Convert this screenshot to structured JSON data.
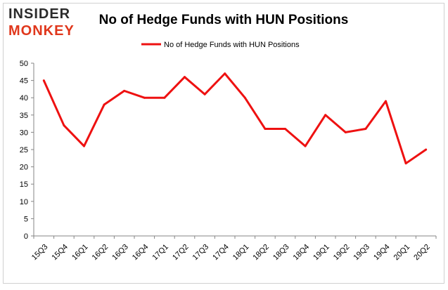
{
  "logo": {
    "line1": "INSIDER",
    "line2": "MONKEY"
  },
  "chart_data": {
    "type": "line",
    "title": "No of Hedge Funds with HUN Positions",
    "xlabel": "",
    "ylabel": "",
    "categories": [
      "15Q3",
      "15Q4",
      "16Q1",
      "16Q2",
      "16Q3",
      "16Q4",
      "17Q1",
      "17Q2",
      "17Q3",
      "17Q4",
      "18Q1",
      "18Q2",
      "18Q3",
      "18Q4",
      "19Q1",
      "19Q2",
      "19Q3",
      "19Q4",
      "20Q1",
      "20Q2"
    ],
    "series": [
      {
        "name": "No of Hedge Funds with HUN  Positions",
        "values": [
          45,
          32,
          26,
          38,
          42,
          40,
          40,
          46,
          41,
          47,
          40,
          31,
          31,
          26,
          35,
          30,
          31,
          39,
          21,
          25
        ]
      }
    ],
    "ylim": [
      0,
      50
    ],
    "yticks": [
      0,
      5,
      10,
      15,
      20,
      25,
      30,
      35,
      40,
      45,
      50
    ],
    "grid": false,
    "legend": "top-center",
    "colors": {
      "line": "#ee1111",
      "axis": "#868686",
      "text": "#000000",
      "logo_dark": "#2b2b2b",
      "logo_red": "#e0371c"
    }
  }
}
